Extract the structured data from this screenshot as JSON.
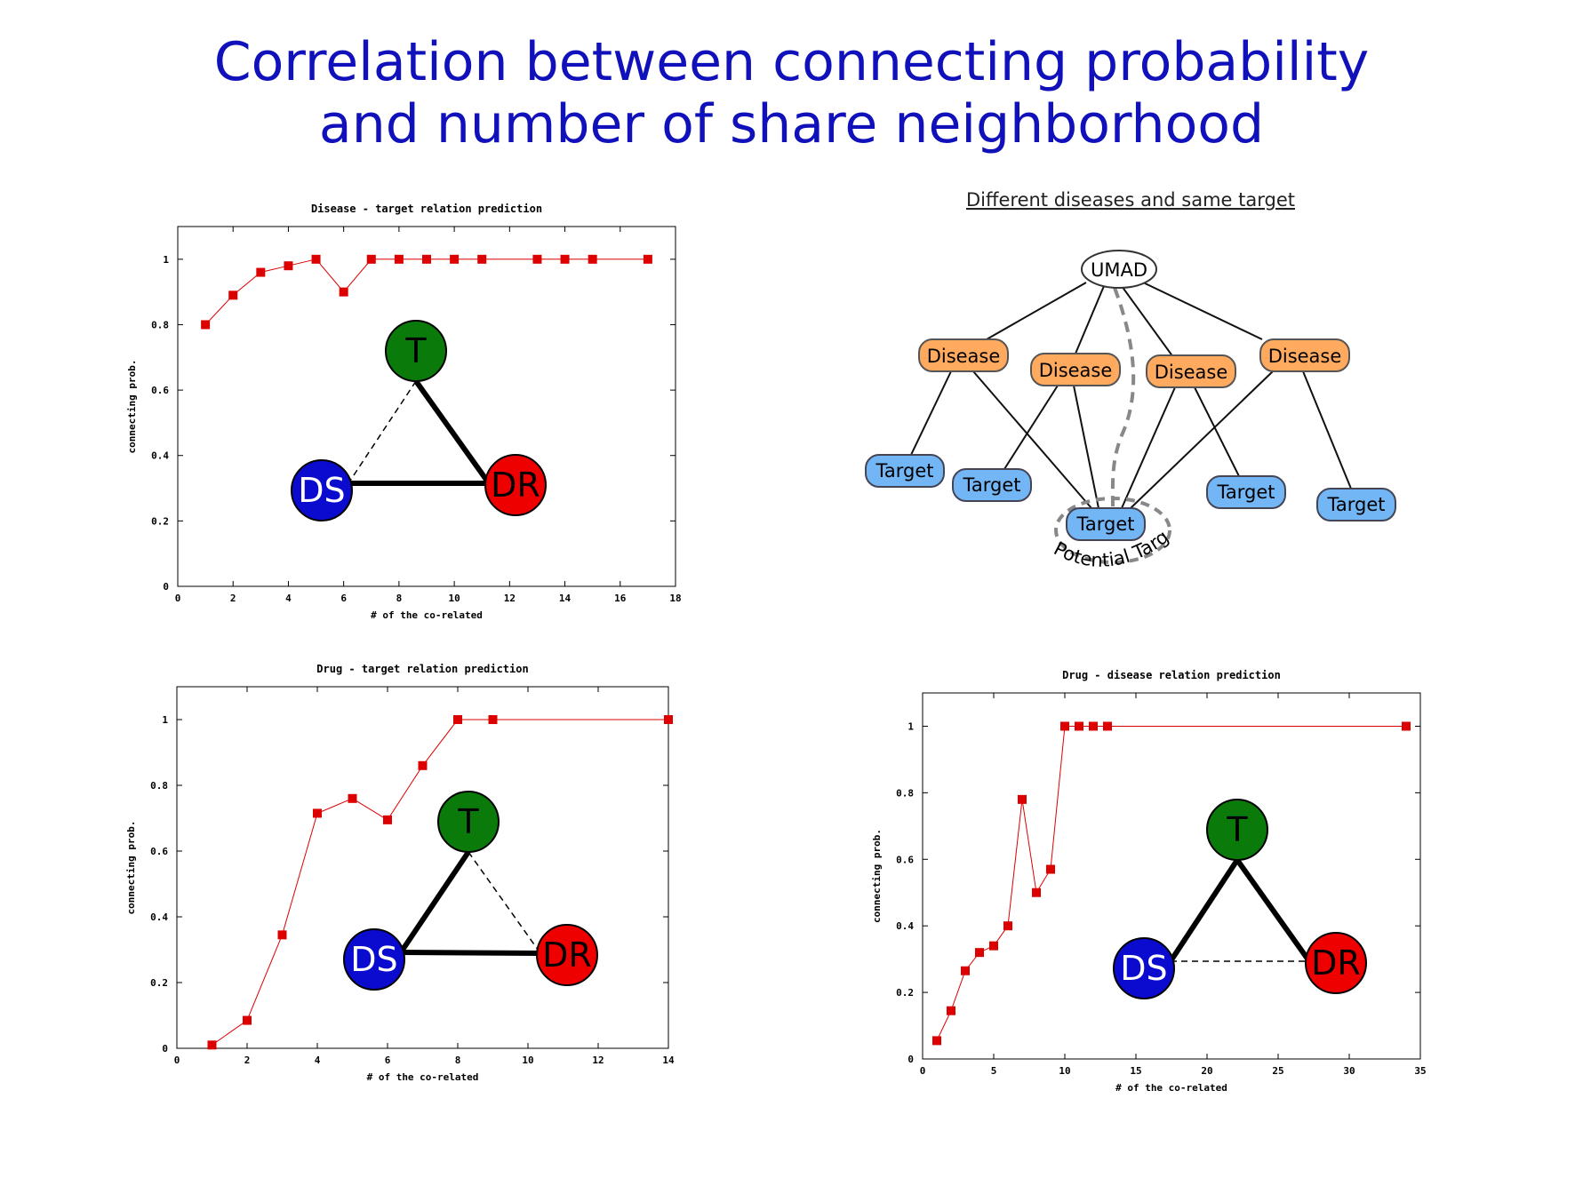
{
  "title": {
    "line1": "Correlation between connecting probability",
    "line2": "and number of share neighborhood"
  },
  "colors": {
    "title": "#1111bb",
    "series": "#dd0000",
    "T": "#0a7a0a",
    "DS": "#0b0bd0",
    "DR": "#ee0000",
    "disease": "#ffaa5e",
    "target": "#72b6f5"
  },
  "chart_data": [
    {
      "type": "line",
      "title": "Disease - target relation prediction",
      "xlabel": "# of the co-related",
      "ylabel": "connecting prob.",
      "xlim": [
        0,
        18
      ],
      "ylim": [
        0,
        1.1
      ],
      "xticks": [
        0,
        2,
        4,
        6,
        8,
        10,
        12,
        14,
        16,
        18
      ],
      "yticks": [
        0,
        0.2,
        0.4,
        0.6,
        0.8,
        1
      ],
      "x": [
        1,
        2,
        3,
        4,
        5,
        6,
        7,
        8,
        9,
        10,
        11,
        13,
        14,
        15,
        17
      ],
      "y": [
        0.8,
        0.89,
        0.96,
        0.98,
        1.0,
        0.9,
        1.0,
        1.0,
        1.0,
        1.0,
        1.0,
        1.0,
        1.0,
        1.0,
        1.0
      ],
      "triangle": {
        "top": "T",
        "left": "DS",
        "right": "DR",
        "dashed_edge": "DS-T"
      }
    },
    {
      "type": "line",
      "title": "Drug - target relation prediction",
      "xlabel": "# of the co-related",
      "ylabel": "connecting prob.",
      "xlim": [
        0,
        14
      ],
      "ylim": [
        0,
        1.1
      ],
      "xticks": [
        0,
        2,
        4,
        6,
        8,
        10,
        12,
        14
      ],
      "yticks": [
        0,
        0.2,
        0.4,
        0.6,
        0.8,
        1
      ],
      "x": [
        1,
        2,
        3,
        4,
        5,
        6,
        7,
        8,
        9,
        14
      ],
      "y": [
        0.01,
        0.085,
        0.345,
        0.715,
        0.76,
        0.695,
        0.86,
        1.0,
        1.0,
        1.0
      ],
      "triangle": {
        "top": "T",
        "left": "DS",
        "right": "DR",
        "dashed_edge": "T-DR"
      }
    },
    {
      "type": "line",
      "title": "Drug - disease relation prediction",
      "xlabel": "# of the co-related",
      "ylabel": "connecting prob.",
      "xlim": [
        0,
        35
      ],
      "ylim": [
        0,
        1.1
      ],
      "xticks": [
        0,
        5,
        10,
        15,
        20,
        25,
        30,
        35
      ],
      "yticks": [
        0,
        0.2,
        0.4,
        0.6,
        0.8,
        1
      ],
      "x": [
        1,
        2,
        3,
        4,
        5,
        6,
        7,
        8,
        9,
        10,
        11,
        12,
        13,
        34
      ],
      "y": [
        0.055,
        0.145,
        0.265,
        0.32,
        0.34,
        0.4,
        0.78,
        0.5,
        0.57,
        1.0,
        1.0,
        1.0,
        1.0,
        1.0
      ],
      "triangle": {
        "top": "T",
        "left": "DS",
        "right": "DR",
        "dashed_edge": "DS-DR"
      }
    }
  ],
  "diagram": {
    "title": "Different diseases and same target",
    "root": "UMAD",
    "disease_label": "Disease",
    "target_label": "Target",
    "potential_label": "Potential Target"
  }
}
